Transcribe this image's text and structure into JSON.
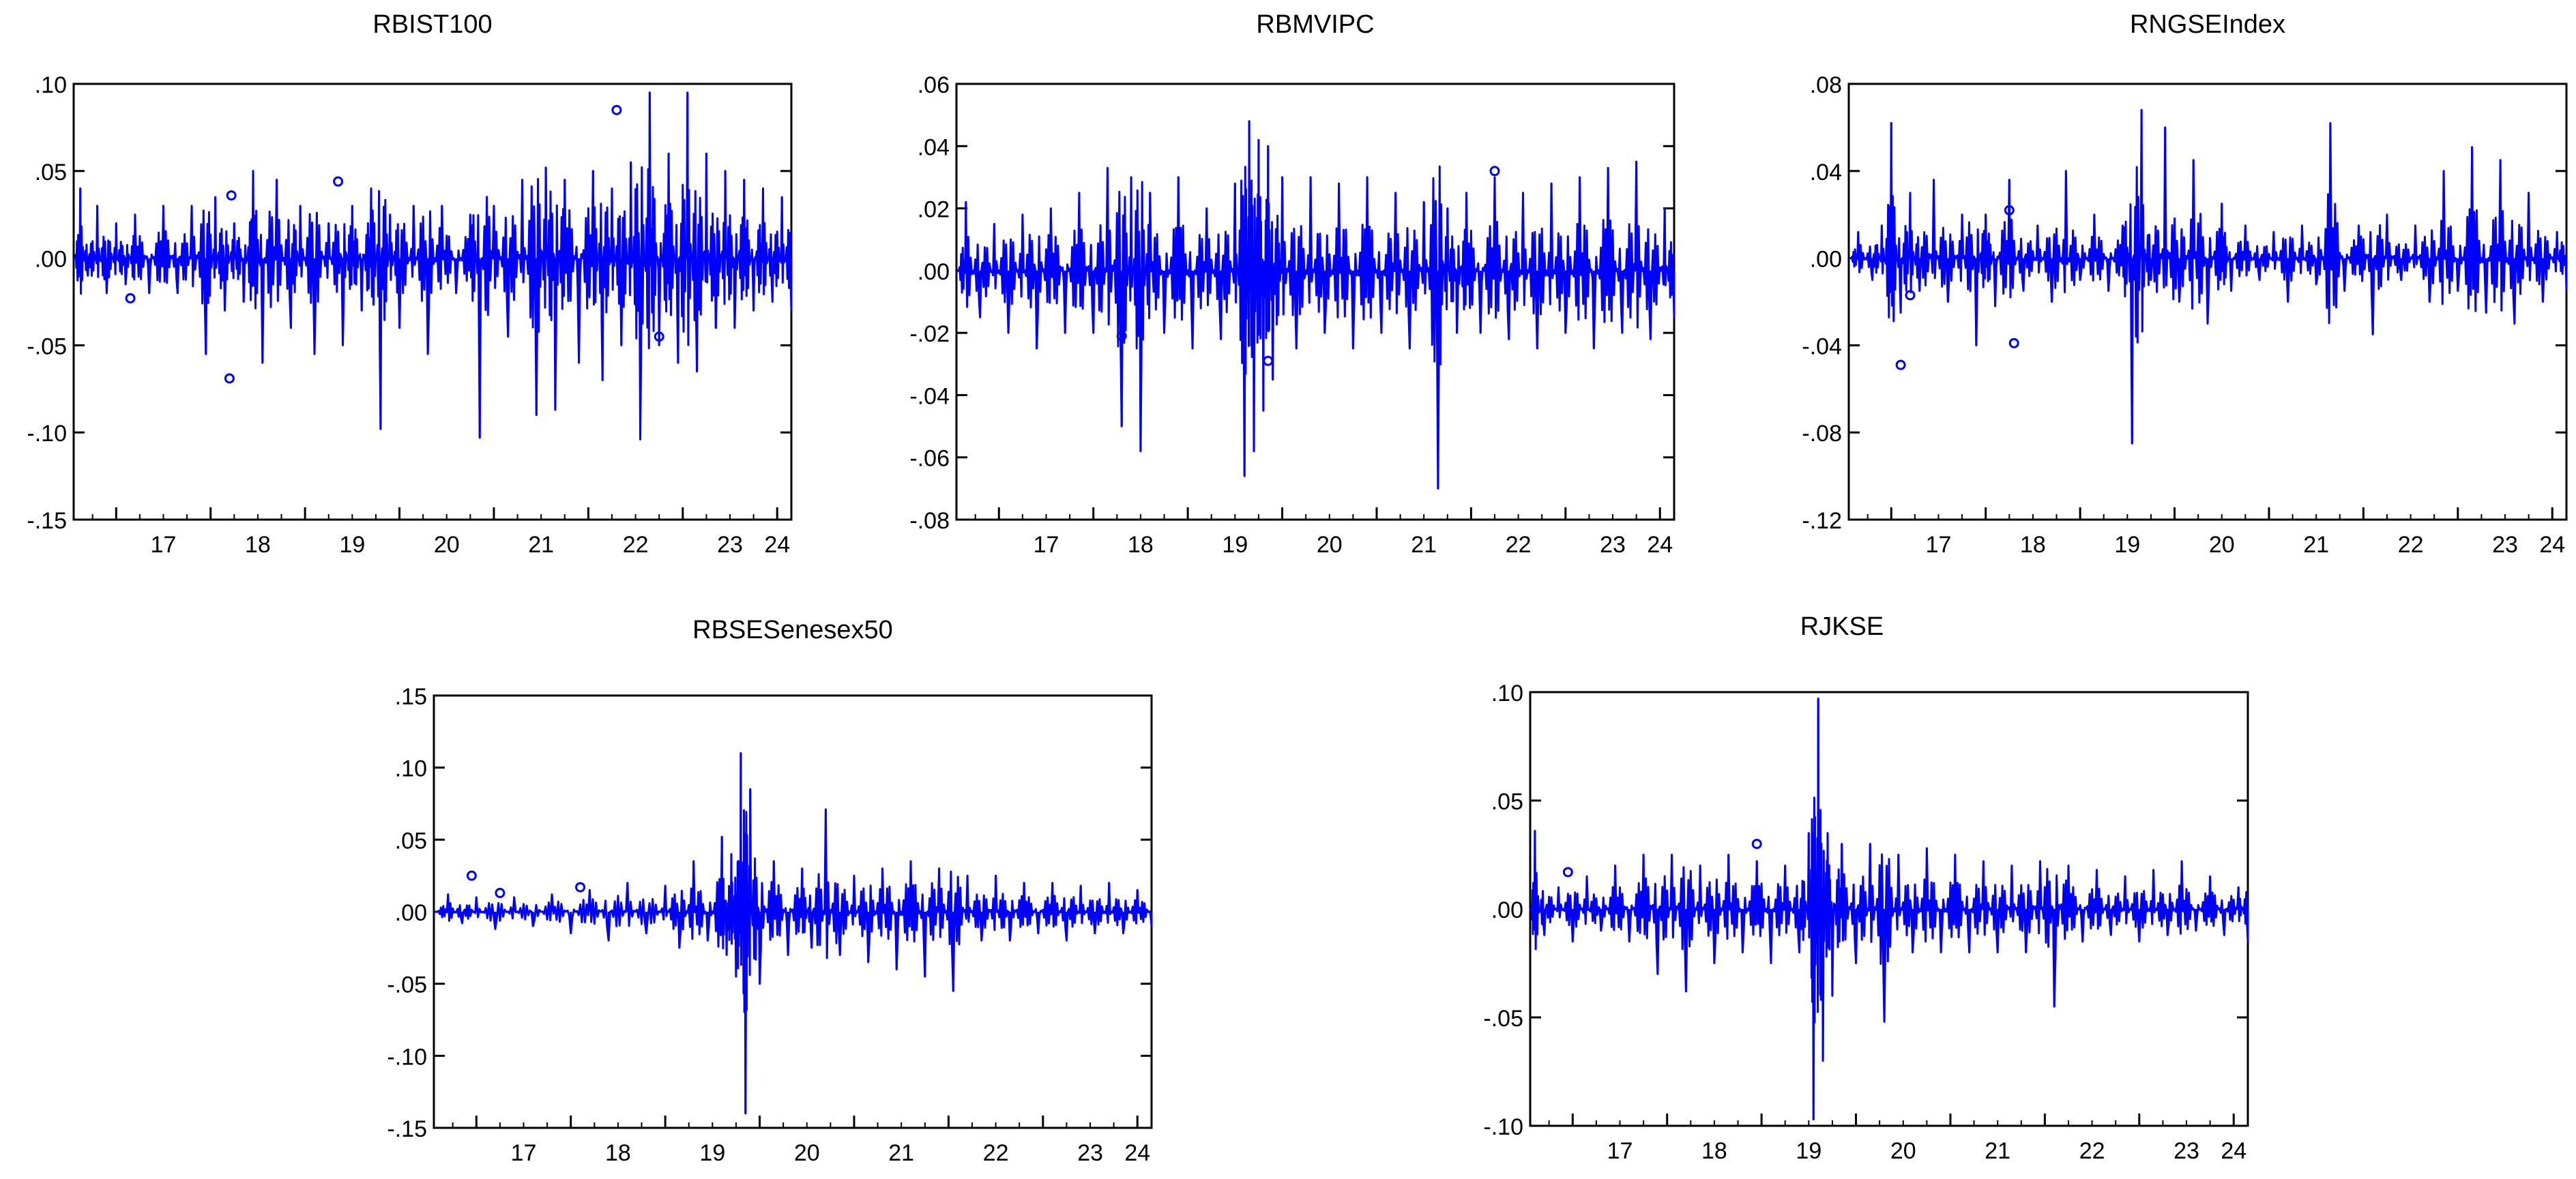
{
  "line_color": "#0000ff",
  "chart_data": [
    {
      "type": "line",
      "title": "RBIST100",
      "xlabel": "",
      "ylabel": "",
      "x_ticks": [
        "17",
        "18",
        "19",
        "20",
        "21",
        "22",
        "23",
        "24"
      ],
      "y_ticks": [
        ".10",
        ".05",
        ".00",
        "-.05",
        "-.10",
        "-.15"
      ],
      "ylim": [
        -0.15,
        0.1
      ],
      "xlim": [
        2016.55,
        2024.15
      ],
      "series": [
        {
          "color": "#0000ff",
          "x": [
            2016.55,
            2016.62,
            2016.7,
            2016.8,
            2016.9,
            2017.0,
            2017.1,
            2017.2,
            2017.35,
            2017.5,
            2017.65,
            2017.8,
            2017.95,
            2018.05,
            2018.15,
            2018.25,
            2018.35,
            2018.45,
            2018.55,
            2018.7,
            2018.85,
            2018.95,
            2019.1,
            2019.25,
            2019.4,
            2019.5,
            2019.6,
            2019.7,
            2019.8,
            2019.9,
            2020.0,
            2020.15,
            2020.3,
            2020.45,
            2020.6,
            2020.75,
            2020.85,
            2021.0,
            2021.15,
            2021.3,
            2021.45,
            2021.55,
            2021.65,
            2021.75,
            2021.9,
            2022.05,
            2022.15,
            2022.25,
            2022.35,
            2022.45,
            2022.55,
            2022.65,
            2022.75,
            2022.85,
            2022.95,
            2023.05,
            2023.15,
            2023.25,
            2023.35,
            2023.45,
            2023.55,
            2023.65,
            2023.75,
            2023.85,
            2023.95,
            2024.05,
            2024.15
          ],
          "values": [
            0.0,
            0.04,
            -0.01,
            0.03,
            -0.02,
            0.02,
            -0.015,
            0.025,
            -0.02,
            0.03,
            -0.02,
            0.03,
            -0.055,
            0.035,
            -0.03,
            0.02,
            -0.025,
            0.05,
            -0.06,
            0.045,
            -0.04,
            0.03,
            -0.055,
            0.02,
            -0.05,
            0.03,
            -0.03,
            0.04,
            -0.098,
            0.025,
            -0.04,
            0.03,
            -0.055,
            0.03,
            -0.02,
            0.025,
            -0.103,
            0.03,
            -0.045,
            0.045,
            -0.09,
            0.052,
            -0.087,
            0.045,
            -0.06,
            0.05,
            -0.07,
            0.04,
            -0.05,
            0.055,
            -0.104,
            0.095,
            -0.05,
            0.06,
            -0.06,
            0.095,
            -0.065,
            0.06,
            -0.04,
            0.05,
            -0.04,
            0.045,
            -0.03,
            0.04,
            -0.025,
            0.035,
            -0.03
          ]
        }
      ],
      "outlier_points": [
        {
          "x": 2017.15,
          "y": -0.023
        },
        {
          "x": 2018.2,
          "y": -0.069
        },
        {
          "x": 2018.22,
          "y": 0.036
        },
        {
          "x": 2019.35,
          "y": 0.044
        },
        {
          "x": 2022.3,
          "y": 0.085
        },
        {
          "x": 2022.75,
          "y": -0.045
        }
      ]
    },
    {
      "type": "line",
      "title": "RBMVIPC",
      "xlabel": "",
      "ylabel": "",
      "x_ticks": [
        "17",
        "18",
        "19",
        "20",
        "21",
        "22",
        "23",
        "24"
      ],
      "y_ticks": [
        ".06",
        ".04",
        ".02",
        ".00",
        "-.02",
        "-.04",
        "-.06",
        "-.08"
      ],
      "ylim": [
        -0.08,
        0.06
      ],
      "xlim": [
        2016.55,
        2024.15
      ],
      "series": [
        {
          "color": "#0000ff",
          "x": [
            2016.55,
            2016.65,
            2016.8,
            2016.95,
            2017.1,
            2017.25,
            2017.4,
            2017.55,
            2017.7,
            2017.85,
            2018.0,
            2018.15,
            2018.3,
            2018.4,
            2018.5,
            2018.6,
            2018.75,
            2018.9,
            2019.05,
            2019.2,
            2019.35,
            2019.5,
            2019.6,
            2019.65,
            2019.7,
            2019.75,
            2019.8,
            2019.85,
            2019.9,
            2020.0,
            2020.15,
            2020.3,
            2020.45,
            2020.6,
            2020.75,
            2020.9,
            2021.05,
            2021.2,
            2021.35,
            2021.5,
            2021.65,
            2021.75,
            2021.85,
            2021.95,
            2022.1,
            2022.25,
            2022.4,
            2022.55,
            2022.7,
            2022.85,
            2023.0,
            2023.15,
            2023.3,
            2023.45,
            2023.6,
            2023.75,
            2023.9,
            2024.05,
            2024.15
          ],
          "values": [
            0.0,
            0.022,
            -0.015,
            0.015,
            -0.02,
            0.018,
            -0.025,
            0.02,
            -0.02,
            0.025,
            -0.02,
            0.033,
            -0.05,
            0.03,
            -0.058,
            0.025,
            -0.02,
            0.03,
            -0.025,
            0.02,
            -0.022,
            0.028,
            -0.066,
            0.048,
            -0.058,
            0.042,
            -0.045,
            0.04,
            -0.035,
            0.03,
            -0.025,
            0.03,
            -0.02,
            0.028,
            -0.025,
            0.03,
            -0.02,
            0.025,
            -0.025,
            0.022,
            -0.07,
            0.02,
            -0.02,
            0.025,
            -0.02,
            0.03,
            -0.022,
            0.025,
            -0.025,
            0.028,
            -0.02,
            0.03,
            -0.025,
            0.033,
            -0.02,
            0.035,
            -0.022,
            0.02,
            -0.015
          ]
        }
      ],
      "outlier_points": [
        {
          "x": 2018.3,
          "y": -0.021
        },
        {
          "x": 2019.85,
          "y": -0.029
        },
        {
          "x": 2022.25,
          "y": 0.032
        }
      ]
    },
    {
      "type": "line",
      "title": "RNGSEIndex",
      "xlabel": "",
      "ylabel": "",
      "x_ticks": [
        "17",
        "18",
        "19",
        "20",
        "21",
        "22",
        "23",
        "24"
      ],
      "y_ticks": [
        ".08",
        ".04",
        ".00",
        "-.04",
        "-.08",
        "-.12"
      ],
      "ylim": [
        -0.12,
        0.08
      ],
      "xlim": [
        2016.55,
        2024.15
      ],
      "series": [
        {
          "color": "#0000ff",
          "x": [
            2016.55,
            2016.65,
            2016.8,
            2016.9,
            2017.0,
            2017.1,
            2017.2,
            2017.3,
            2017.45,
            2017.6,
            2017.75,
            2017.9,
            2018.0,
            2018.1,
            2018.25,
            2018.4,
            2018.55,
            2018.7,
            2018.85,
            2019.0,
            2019.15,
            2019.3,
            2019.45,
            2019.55,
            2019.65,
            2019.75,
            2019.9,
            2020.05,
            2020.2,
            2020.35,
            2020.5,
            2020.6,
            2020.75,
            2020.9,
            2021.05,
            2021.2,
            2021.35,
            2021.5,
            2021.65,
            2021.8,
            2021.95,
            2022.1,
            2022.25,
            2022.4,
            2022.55,
            2022.7,
            2022.85,
            2023.0,
            2023.15,
            2023.3,
            2023.45,
            2023.6,
            2023.75,
            2023.9,
            2024.05,
            2024.15
          ],
          "values": [
            0.0,
            0.012,
            -0.01,
            0.015,
            0.062,
            -0.025,
            0.03,
            -0.015,
            0.036,
            -0.02,
            0.02,
            -0.04,
            0.02,
            -0.022,
            0.036,
            -0.015,
            0.015,
            -0.02,
            0.04,
            -0.01,
            0.02,
            -0.015,
            0.015,
            -0.085,
            0.068,
            -0.01,
            0.06,
            -0.02,
            0.045,
            -0.03,
            0.025,
            -0.015,
            0.015,
            -0.01,
            0.012,
            -0.02,
            0.015,
            -0.012,
            0.062,
            -0.015,
            0.015,
            -0.035,
            0.02,
            -0.01,
            0.015,
            -0.02,
            0.04,
            -0.015,
            0.051,
            -0.025,
            0.045,
            -0.03,
            0.03,
            -0.02,
            0.012,
            -0.015
          ]
        }
      ],
      "outlier_points": [
        {
          "x": 2017.1,
          "y": -0.049
        },
        {
          "x": 2017.2,
          "y": -0.017
        },
        {
          "x": 2018.25,
          "y": 0.022
        },
        {
          "x": 2018.3,
          "y": -0.039
        }
      ]
    },
    {
      "type": "line",
      "title": "RBSESenesex50",
      "xlabel": "",
      "ylabel": "",
      "x_ticks": [
        "17",
        "18",
        "19",
        "20",
        "21",
        "22",
        "23",
        "24"
      ],
      "y_ticks": [
        ".15",
        ".10",
        ".05",
        ".00",
        "-.05",
        "-.10",
        "-.15"
      ],
      "ylim": [
        -0.15,
        0.15
      ],
      "xlim": [
        2016.55,
        2024.15
      ],
      "series": [
        {
          "color": "#0000ff",
          "x": [
            2016.55,
            2016.7,
            2016.85,
            2017.0,
            2017.2,
            2017.4,
            2017.6,
            2017.8,
            2018.0,
            2018.2,
            2018.4,
            2018.6,
            2018.8,
            2019.0,
            2019.15,
            2019.3,
            2019.45,
            2019.6,
            2019.65,
            2019.7,
            2019.75,
            2019.8,
            2019.85,
            2019.9,
            2020.0,
            2020.15,
            2020.3,
            2020.45,
            2020.55,
            2020.7,
            2020.85,
            2021.0,
            2021.15,
            2021.3,
            2021.45,
            2021.6,
            2021.75,
            2021.9,
            2022.05,
            2022.2,
            2022.35,
            2022.5,
            2022.65,
            2022.8,
            2022.95,
            2023.1,
            2023.25,
            2023.4,
            2023.55,
            2023.7,
            2023.85,
            2024.0,
            2024.15
          ],
          "values": [
            0.0,
            0.012,
            -0.008,
            0.01,
            -0.012,
            0.01,
            -0.01,
            0.012,
            -0.015,
            0.015,
            -0.02,
            0.02,
            -0.015,
            0.018,
            -0.025,
            0.035,
            -0.02,
            0.052,
            -0.03,
            0.04,
            -0.045,
            0.11,
            -0.14,
            0.085,
            -0.05,
            0.035,
            -0.03,
            0.03,
            -0.025,
            0.071,
            -0.03,
            0.025,
            -0.035,
            0.03,
            -0.04,
            0.035,
            -0.045,
            0.03,
            -0.055,
            0.025,
            -0.02,
            0.025,
            -0.02,
            0.02,
            -0.015,
            0.02,
            -0.02,
            0.018,
            -0.015,
            0.02,
            -0.015,
            0.015,
            -0.01
          ]
        }
      ],
      "outlier_points": [
        {
          "x": 2016.95,
          "y": 0.025
        },
        {
          "x": 2017.25,
          "y": 0.013
        },
        {
          "x": 2018.1,
          "y": 0.017
        }
      ]
    },
    {
      "type": "line",
      "title": "RJKSE",
      "xlabel": "",
      "ylabel": "",
      "x_ticks": [
        "17",
        "18",
        "19",
        "20",
        "21",
        "22",
        "23",
        "24"
      ],
      "y_ticks": [
        ".10",
        ".05",
        ".00",
        "-.05",
        "-.10"
      ],
      "ylim": [
        -0.1,
        0.1
      ],
      "xlim": [
        2016.55,
        2024.15
      ],
      "series": [
        {
          "color": "#0000ff",
          "x": [
            2016.55,
            2016.6,
            2016.7,
            2016.85,
            2017.0,
            2017.15,
            2017.3,
            2017.45,
            2017.6,
            2017.75,
            2017.9,
            2018.05,
            2018.2,
            2018.35,
            2018.5,
            2018.65,
            2018.8,
            2018.95,
            2019.1,
            2019.25,
            2019.4,
            2019.5,
            2019.55,
            2019.6,
            2019.65,
            2019.7,
            2019.75,
            2019.85,
            2020.0,
            2020.15,
            2020.3,
            2020.45,
            2020.6,
            2020.75,
            2020.9,
            2021.05,
            2021.2,
            2021.35,
            2021.5,
            2021.65,
            2021.8,
            2021.95,
            2022.1,
            2022.25,
            2022.4,
            2022.55,
            2022.7,
            2022.85,
            2023.0,
            2023.15,
            2023.3,
            2023.45,
            2023.6,
            2023.75,
            2023.9,
            2024.05,
            2024.15
          ],
          "values": [
            0.0,
            0.036,
            -0.012,
            0.01,
            -0.015,
            0.015,
            -0.01,
            0.02,
            -0.015,
            0.025,
            -0.03,
            0.025,
            -0.038,
            0.02,
            -0.025,
            0.025,
            -0.02,
            0.022,
            -0.025,
            0.02,
            -0.02,
            0.035,
            -0.097,
            0.097,
            -0.07,
            0.035,
            -0.04,
            0.03,
            -0.025,
            0.03,
            -0.052,
            0.025,
            -0.02,
            0.028,
            -0.02,
            0.025,
            -0.02,
            0.022,
            -0.02,
            0.02,
            -0.02,
            0.022,
            -0.045,
            0.02,
            -0.015,
            0.018,
            -0.012,
            0.015,
            -0.015,
            0.018,
            -0.012,
            0.022,
            -0.01,
            0.015,
            -0.012,
            0.01,
            -0.015
          ]
        }
      ],
      "outlier_points": [
        {
          "x": 2016.95,
          "y": 0.017
        },
        {
          "x": 2018.95,
          "y": 0.03
        }
      ]
    }
  ]
}
